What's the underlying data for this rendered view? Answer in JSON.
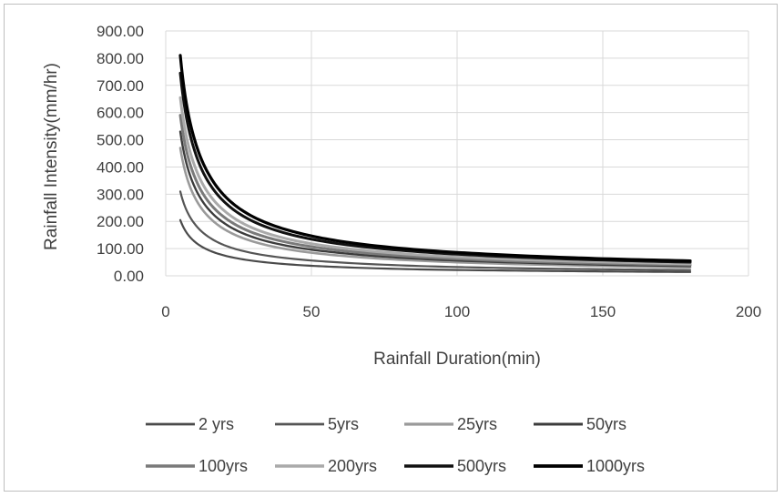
{
  "chart_data": {
    "type": "line",
    "title": "",
    "xlabel": "Rainfall Duration(min)",
    "ylabel": "Rainfall Intensity(mm/hr)",
    "xlim": [
      0,
      200
    ],
    "ylim": [
      0,
      900
    ],
    "x_ticks": [
      "0",
      "50",
      "100",
      "150",
      "200"
    ],
    "y_ticks": [
      "0.00",
      "100.00",
      "200.00",
      "300.00",
      "400.00",
      "500.00",
      "600.00",
      "700.00",
      "800.00",
      "900.00"
    ],
    "grid": true,
    "legend_position": "bottom",
    "x": [
      5,
      10,
      15,
      20,
      30,
      45,
      60,
      90,
      120,
      150,
      180
    ],
    "series": [
      {
        "name": "2 yrs",
        "color": "#4a4a4a",
        "width": 2.2,
        "values": [
          205,
          125,
          93,
          75,
          55,
          40,
          32,
          23,
          19,
          16,
          14
        ]
      },
      {
        "name": "5yrs",
        "color": "#555555",
        "width": 2.2,
        "values": [
          310,
          190,
          141,
          113,
          83,
          61,
          49,
          35,
          28,
          24,
          21
        ]
      },
      {
        "name": "25yrs",
        "color": "#9a9a9a",
        "width": 2.6,
        "values": [
          470,
          288,
          214,
          172,
          126,
          92,
          74,
          54,
          43,
          36,
          31
        ]
      },
      {
        "name": "50yrs",
        "color": "#3c3c3c",
        "width": 2.4,
        "values": [
          530,
          325,
          241,
          194,
          142,
          104,
          84,
          61,
          49,
          41,
          36
        ]
      },
      {
        "name": "100yrs",
        "color": "#7a7a7a",
        "width": 3.0,
        "values": [
          590,
          362,
          268,
          216,
          158,
          116,
          93,
          68,
          54,
          46,
          40
        ]
      },
      {
        "name": "200yrs",
        "color": "#aaaaaa",
        "width": 3.0,
        "values": [
          655,
          402,
          298,
          240,
          175,
          128,
          103,
          75,
          60,
          51,
          44
        ]
      },
      {
        "name": "500yrs",
        "color": "#111111",
        "width": 3.0,
        "values": [
          745,
          457,
          339,
          273,
          200,
          146,
          117,
          86,
          69,
          58,
          50
        ]
      },
      {
        "name": "1000yrs",
        "color": "#000000",
        "width": 3.2,
        "values": [
          810,
          497,
          369,
          296,
          217,
          159,
          127,
          93,
          75,
          63,
          55
        ]
      }
    ]
  }
}
